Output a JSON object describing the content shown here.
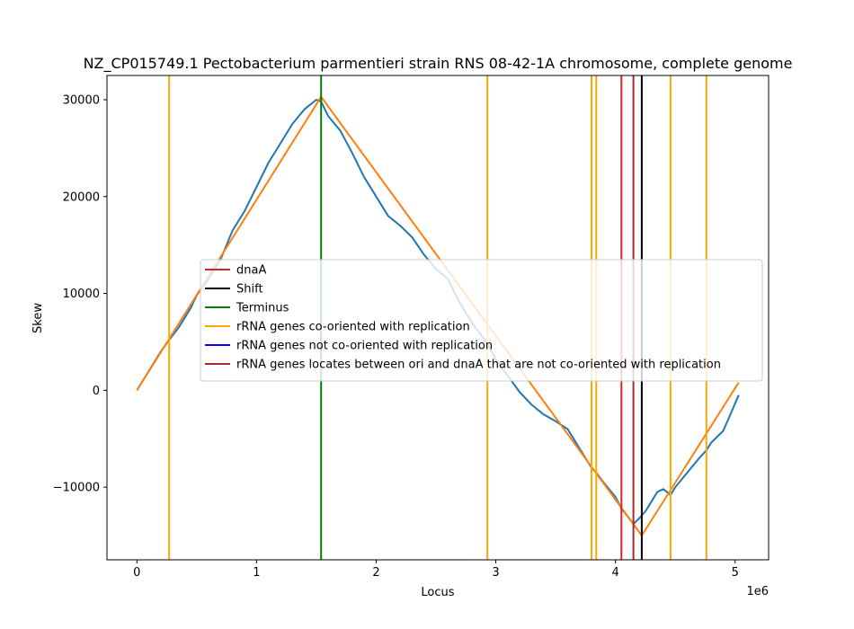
{
  "chart_data": {
    "type": "line",
    "title": "NZ_CP015749.1 Pectobacterium parmentieri strain RNS 08-42-1A chromosome, complete genome",
    "xlabel": "Locus",
    "ylabel": "Skew",
    "x_offset_label": "1e6",
    "xlim": [
      -250000,
      5280000
    ],
    "ylim": [
      -17500,
      32500
    ],
    "x_ticks": [
      0,
      1000000,
      2000000,
      3000000,
      4000000,
      5000000
    ],
    "x_tick_labels": [
      "0",
      "1",
      "2",
      "3",
      "4",
      "5"
    ],
    "y_ticks": [
      -10000,
      0,
      10000,
      20000,
      30000
    ],
    "y_tick_labels": [
      "−10000",
      "0",
      "10000",
      "20000",
      "30000"
    ],
    "grid": false,
    "legend_position": "center",
    "colors": {
      "skew": "#1f77b4",
      "fit": "#ff7f0e",
      "dnaA": "#d62728",
      "shift": "#000000",
      "terminus": "#008000",
      "rrna_co": "#ffa500",
      "rrna_not_co": "#0000ff",
      "rrna_between": "#a52a2a"
    },
    "series": [
      {
        "key": "skew",
        "x": [
          0,
          100000,
          200000,
          270000,
          350000,
          450000,
          500000,
          600000,
          700000,
          800000,
          900000,
          1000000,
          1100000,
          1200000,
          1300000,
          1400000,
          1450000,
          1500000,
          1540000,
          1600000,
          1700000,
          1800000,
          1900000,
          2000000,
          2100000,
          2200000,
          2300000,
          2400000,
          2500000,
          2600000,
          2700000,
          2800000,
          2930000,
          3000000,
          3100000,
          3200000,
          3300000,
          3400000,
          3500000,
          3600000,
          3700000,
          3800000,
          3840000,
          3900000,
          4000000,
          4050000,
          4100000,
          4150000,
          4200000,
          4250000,
          4300000,
          4350000,
          4400000,
          4460000,
          4500000,
          4600000,
          4700000,
          4760000,
          4800000,
          4900000,
          4950000,
          5030000
        ],
        "y": [
          0,
          2000,
          4000,
          5200,
          6500,
          8500,
          9800,
          11500,
          13500,
          16500,
          18500,
          21000,
          23500,
          25500,
          27500,
          29000,
          29500,
          30000,
          29800,
          28300,
          26800,
          24500,
          22000,
          20000,
          18000,
          17000,
          15800,
          14000,
          12500,
          11500,
          9000,
          7000,
          4800,
          3200,
          1500,
          -200,
          -1500,
          -2500,
          -3200,
          -4000,
          -6000,
          -8000,
          -8500,
          -9500,
          -11000,
          -12200,
          -13000,
          -13800,
          -13200,
          -12500,
          -11500,
          -10500,
          -10200,
          -10800,
          -10000,
          -8500,
          -7000,
          -6200,
          -5400,
          -4200,
          -2800,
          -500
        ]
      },
      {
        "key": "fit",
        "x": [
          0,
          1540000,
          4220000,
          5030000
        ],
        "y": [
          0,
          30300,
          -15000,
          800
        ]
      }
    ],
    "vlines": [
      {
        "x": 4050000,
        "kind": "dnaA"
      },
      {
        "x": 4220000,
        "kind": "shift"
      },
      {
        "x": 1540000,
        "kind": "terminus"
      },
      {
        "x": 270000,
        "kind": "rrna_co"
      },
      {
        "x": 2930000,
        "kind": "rrna_co"
      },
      {
        "x": 3800000,
        "kind": "rrna_co"
      },
      {
        "x": 3840000,
        "kind": "rrna_co"
      },
      {
        "x": 4460000,
        "kind": "rrna_co"
      },
      {
        "x": 4760000,
        "kind": "rrna_co"
      },
      {
        "x": 4150000,
        "kind": "rrna_between"
      }
    ],
    "legend": [
      {
        "label": "dnaA",
        "color_key": "dnaA"
      },
      {
        "label": "Shift",
        "color_key": "shift"
      },
      {
        "label": "Terminus",
        "color_key": "terminus"
      },
      {
        "label": "rRNA genes co-oriented with replication",
        "color_key": "rrna_co"
      },
      {
        "label": "rRNA genes not co-oriented with replication",
        "color_key": "rrna_not_co"
      },
      {
        "label": "rRNA genes locates between ori and dnaA that are not co-oriented with replication",
        "color_key": "rrna_between"
      }
    ]
  }
}
